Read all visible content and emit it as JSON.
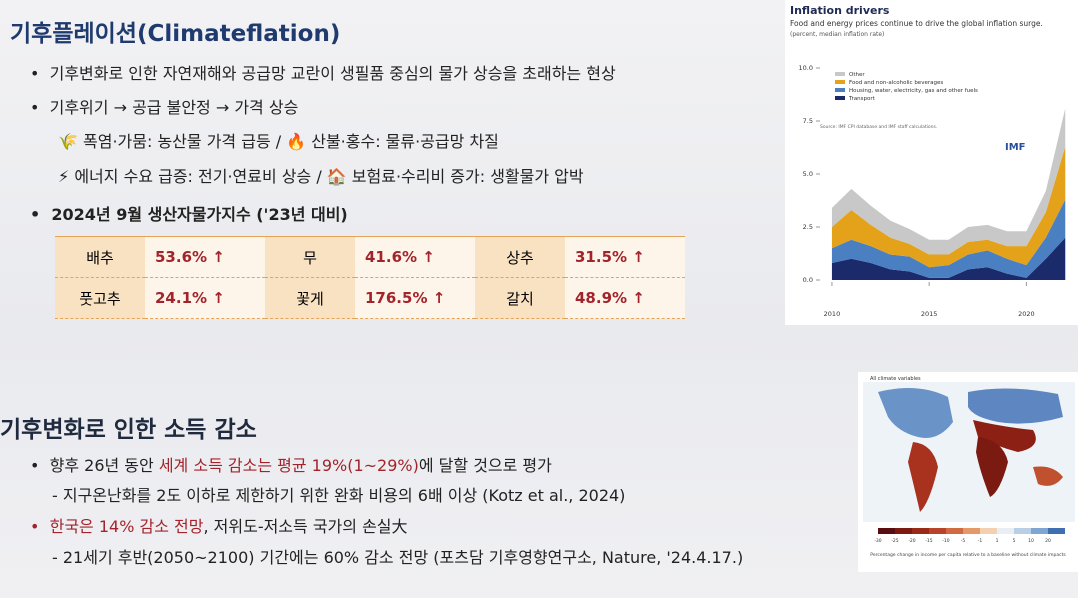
{
  "section1": {
    "title": "기후플레이션(Climateflation)",
    "bullets": [
      "기후변화로 인한 자연재해와 공급망 교란이 생필품 중심의 물가 상승을 초래하는 현상",
      "기후위기 → 공급 불안정 → 가격 상승"
    ],
    "sub_items": [
      "폭염·가뭄: 농산물 가격 급등 / 🔥 산불·홍수: 물류·공급망 차질",
      "에너지 수요 급증: 전기·연료비 상승 / 🏠 보험료·수리비 증가: 생활물가 압박"
    ],
    "table_title": "2024년 9월 생산자물가지수 ('23년 대비)",
    "table": {
      "rows": [
        [
          "배추",
          "53.6% ↑",
          "무",
          "41.6% ↑",
          "상추",
          "31.5% ↑"
        ],
        [
          "풋고추",
          "24.1% ↑",
          "꽃게",
          "176.5% ↑",
          "갈치",
          "48.9% ↑"
        ]
      ]
    }
  },
  "chart_data": {
    "type": "area",
    "title": "Inflation drivers",
    "subtitle": "Food and energy prices continue to drive the global inflation surge.",
    "note": "(percent, median inflation rate)",
    "source": "Source: IMF CPI database and IMF staff calculations.",
    "logo": "IMF",
    "x": [
      2010,
      2011,
      2012,
      2013,
      2014,
      2015,
      2016,
      2017,
      2018,
      2019,
      2020,
      2021,
      2022
    ],
    "xlim": [
      2009.9,
      2022.5
    ],
    "xticks": [
      2010,
      2015,
      2020
    ],
    "ylim": [
      0,
      10
    ],
    "yticks": [
      {
        "value": 0,
        "label": "0.0"
      },
      {
        "value": 2.5,
        "label": "2.5"
      },
      {
        "value": 5,
        "label": "5.0"
      },
      {
        "value": 7.5,
        "label": "7.5"
      },
      {
        "value": 10,
        "label": "10.0"
      }
    ],
    "series": [
      {
        "name": "Transport",
        "color": "#1b2a6b",
        "values": [
          0.8,
          1.0,
          0.8,
          0.5,
          0.4,
          0.1,
          0.1,
          0.5,
          0.6,
          0.3,
          0.1,
          1.0,
          2.0
        ]
      },
      {
        "name": "Housing, water, electricity, gas and other fuels",
        "color": "#4a7fc1",
        "values": [
          0.7,
          0.9,
          0.8,
          0.7,
          0.7,
          0.5,
          0.6,
          0.7,
          0.8,
          0.7,
          0.6,
          1.0,
          1.8
        ]
      },
      {
        "name": "Food and non-alcoholic beverages",
        "color": "#e3a21a",
        "values": [
          1.0,
          1.4,
          1.0,
          0.8,
          0.6,
          0.6,
          0.5,
          0.6,
          0.5,
          0.6,
          0.9,
          1.2,
          2.5
        ]
      },
      {
        "name": "Other",
        "color": "#c8c8c8",
        "values": [
          0.9,
          1.0,
          0.9,
          0.8,
          0.7,
          0.7,
          0.7,
          0.7,
          0.7,
          0.7,
          0.7,
          1.0,
          1.8
        ]
      }
    ],
    "legend": "top-left"
  },
  "section2": {
    "title": "기후변화로 인한 소득 감소",
    "line1": [
      "향후 26년 동안 ",
      "세계 소득 감소는 평균 19%(1~29%)",
      "에 달할 것으로 평가"
    ],
    "line2": "- 지구온난화를 2도 이하로 제한하기 위한 완화 비용의 6배 이상 (Kotz et al., 2024)",
    "line3": [
      "한국은 14% 감소 전망",
      ", 저위도-저소득 국가의 손실大"
    ],
    "line4": "- 21세기 후반(2050~2100) 기간에는 60% 감소 전망 (포츠담 기후영향연구소, Nature, '24.4.17.)"
  },
  "map": {
    "title": "All climate variables",
    "colorbar_ticks": [
      "-30",
      "-25",
      "-20",
      "-15",
      "-10",
      "-5",
      "-1",
      "1",
      "5",
      "10",
      "20"
    ],
    "caption": "Percentage change in income per capita relative to a baseline without climate impacts"
  }
}
